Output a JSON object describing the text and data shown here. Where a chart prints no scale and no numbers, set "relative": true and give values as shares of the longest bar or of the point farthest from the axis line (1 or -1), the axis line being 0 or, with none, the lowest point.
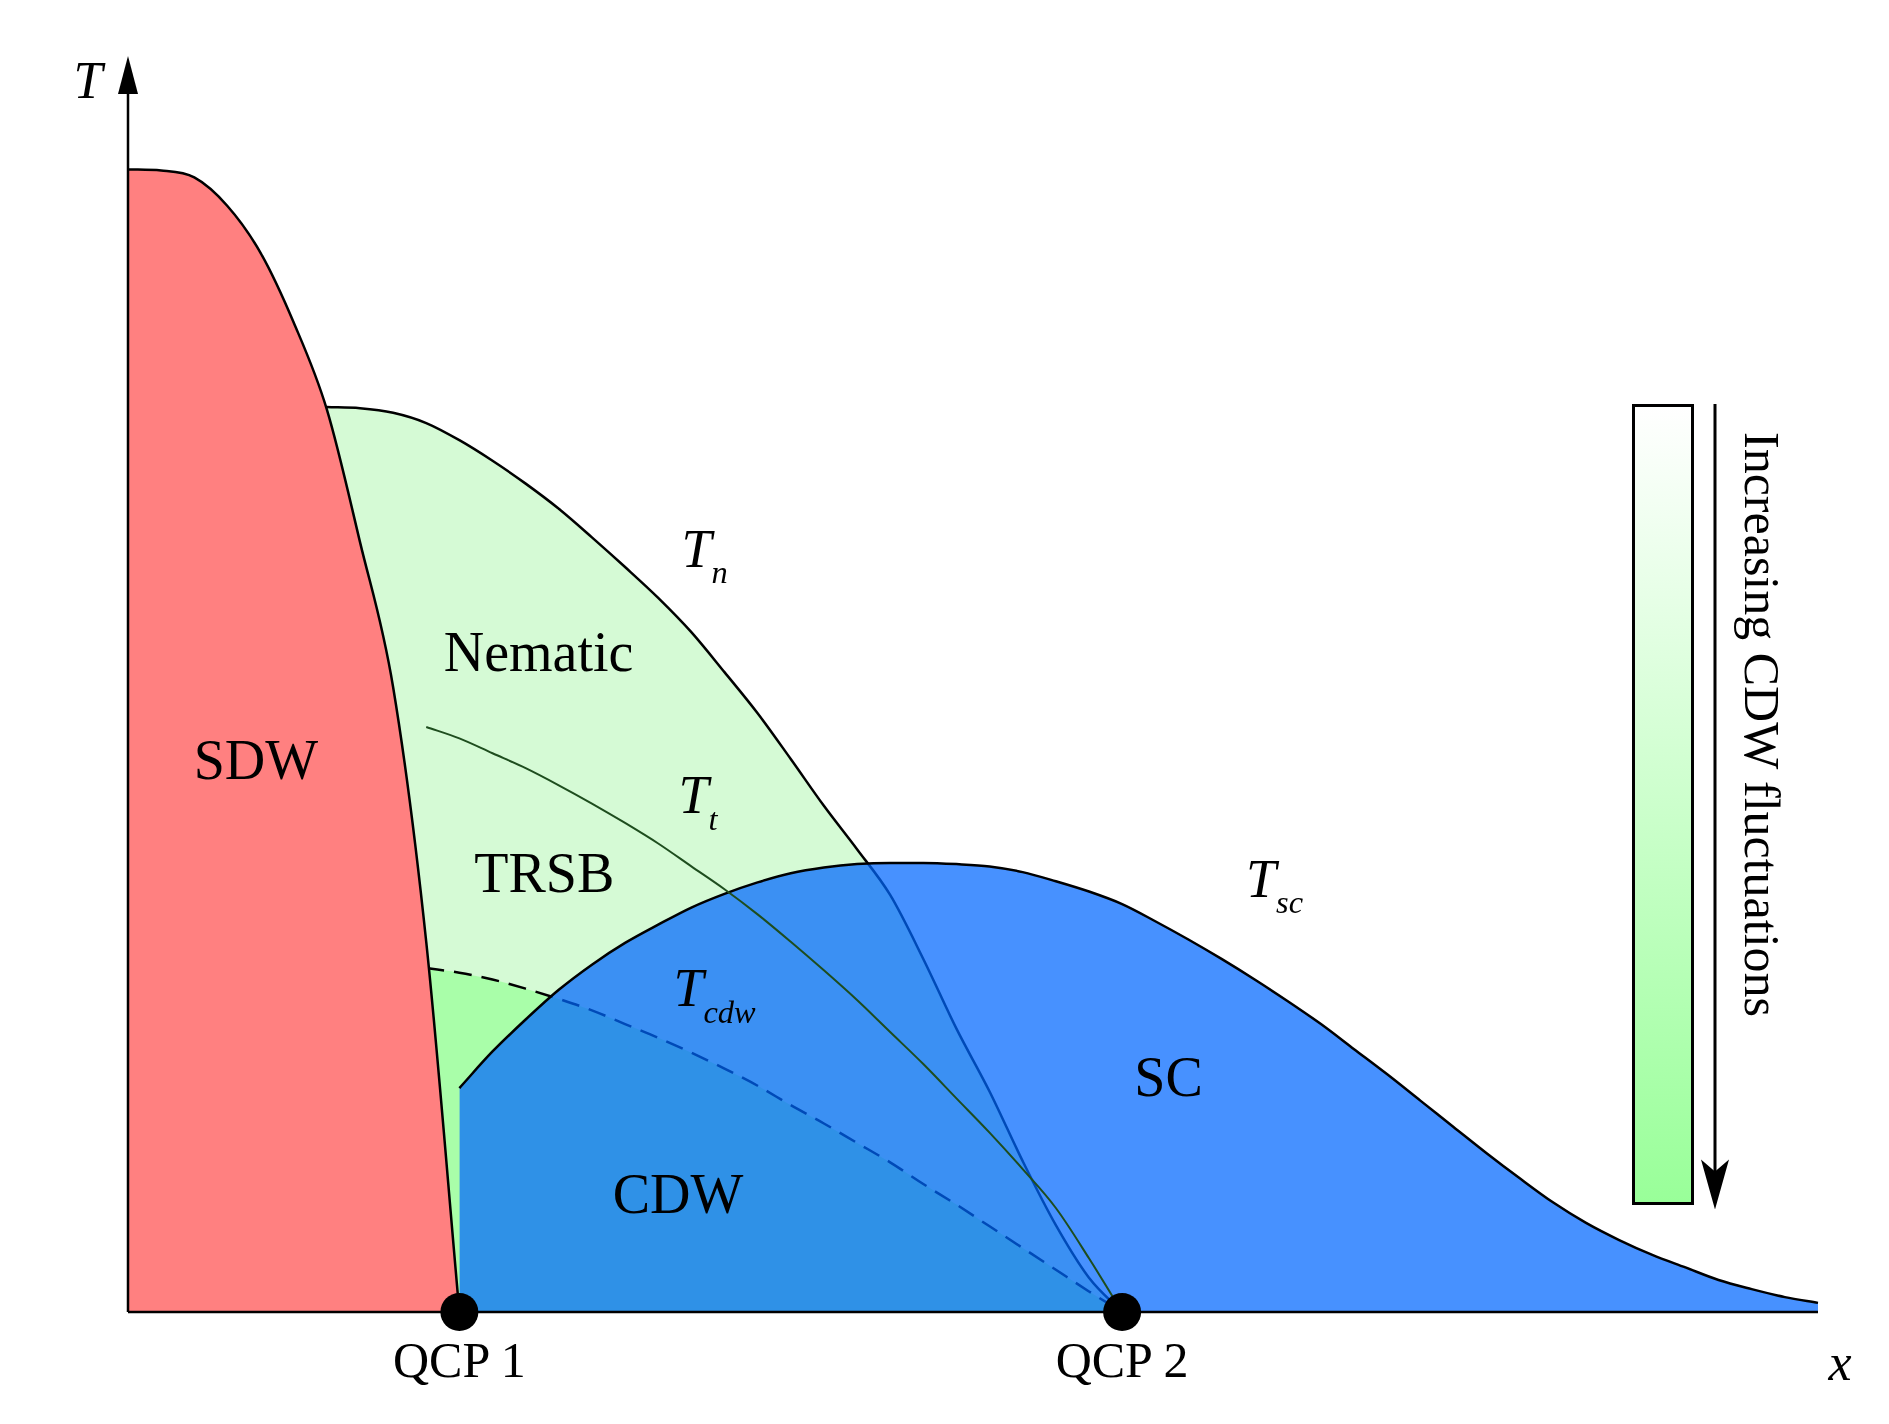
{
  "chart_data": {
    "type": "area",
    "relative": true,
    "xlabel": "x",
    "ylabel": "T",
    "legend": false,
    "grid": false,
    "categories": [
      null,
      null,
      null,
      null,
      null,
      null,
      null,
      null,
      null,
      null,
      "QCP 1",
      null,
      null,
      null,
      null,
      null,
      null,
      null,
      null,
      null,
      null,
      null,
      null,
      null,
      null,
      null,
      null,
      null,
      null,
      null,
      "QCP 2",
      null,
      null,
      null,
      null,
      null,
      null,
      null,
      null,
      null,
      null,
      null,
      null,
      null,
      null,
      null,
      null,
      null,
      null,
      null,
      null,
      null
    ],
    "series": [
      {
        "type": "area",
        "color": "#d0fad0",
        "values": [
          null,
          null,
          null,
          null,
          null,
          null,
          0.792,
          0.791,
          0.787,
          0.778,
          0.763,
          0.745,
          0.725,
          0.703,
          0.678,
          0.652,
          0.625,
          0.595,
          0.56,
          0.524,
          0.484,
          0.443,
          0.405,
          0.365,
          0.309,
          0.248,
          0.193,
          0.132,
          0.076,
          0.03,
          0,
          null,
          null,
          null,
          null,
          null,
          null,
          null,
          null,
          null,
          null,
          null,
          null,
          null,
          null,
          null,
          null,
          null,
          null,
          null,
          null,
          null
        ]
      },
      {
        "type": "area",
        "color": "#99ff99",
        "line_style": "dashed",
        "values": [
          null,
          null,
          null,
          null,
          null,
          null,
          null,
          null,
          null,
          0.301,
          0.297,
          0.291,
          0.283,
          0.274,
          0.264,
          0.252,
          0.24,
          0.227,
          0.213,
          0.198,
          0.181,
          0.165,
          0.148,
          0.131,
          0.112,
          0.094,
          0.075,
          0.056,
          0.037,
          0.018,
          0,
          null,
          null,
          null,
          null,
          null,
          null,
          null,
          null,
          null,
          null,
          null,
          null,
          null,
          null,
          null,
          null,
          null,
          null,
          null,
          null,
          null
        ]
      },
      {
        "type": "area",
        "color": "#0066ff",
        "values": [
          null,
          null,
          null,
          null,
          null,
          null,
          null,
          null,
          null,
          null,
          0.196,
          0.228,
          0.256,
          0.282,
          0.304,
          0.323,
          0.339,
          0.354,
          0.366,
          0.376,
          0.384,
          0.389,
          0.392,
          0.393,
          0.393,
          0.392,
          0.39,
          0.385,
          0.377,
          0.368,
          0.357,
          0.342,
          0.326,
          0.309,
          0.291,
          0.272,
          0.252,
          0.23,
          0.208,
          0.185,
          0.162,
          0.139,
          0.117,
          0.096,
          0.078,
          0.063,
          0.05,
          0.039,
          0.028,
          0.02,
          0.013,
          0.008
        ]
      },
      {
        "type": "line",
        "color": "#1e4d1e",
        "values": [
          null,
          null,
          null,
          null,
          null,
          null,
          null,
          null,
          null,
          0.512,
          0.502,
          0.489,
          0.476,
          0.461,
          0.445,
          0.428,
          0.41,
          0.39,
          0.37,
          0.348,
          0.324,
          0.299,
          0.273,
          0.245,
          0.217,
          0.187,
          0.157,
          0.125,
          0.091,
          0.047,
          0,
          null,
          null,
          null,
          null,
          null,
          null,
          null,
          null,
          null,
          null,
          null,
          null,
          null,
          null,
          null,
          null,
          null,
          null,
          null,
          null,
          null
        ]
      },
      {
        "type": "area",
        "color": "#ff8080",
        "values": [
          1,
          0.999,
          0.993,
          0.968,
          0.927,
          0.866,
          0.79,
          0.674,
          0.547,
          0.324,
          0,
          null,
          null,
          null,
          null,
          null,
          null,
          null,
          null,
          null,
          null,
          null,
          null,
          null,
          null,
          null,
          null,
          null,
          null,
          null,
          null,
          null,
          null,
          null,
          null,
          null,
          null,
          null,
          null,
          null,
          null,
          null,
          null,
          null,
          null,
          null,
          null,
          null,
          null,
          null,
          null,
          null
        ]
      },
      {
        "type": "scatter",
        "color": "#000000",
        "marker": "circle",
        "values": [
          null,
          null,
          null,
          null,
          null,
          null,
          null,
          null,
          null,
          null,
          0,
          null,
          null,
          null,
          null,
          null,
          null,
          null,
          null,
          null,
          null,
          null,
          null,
          null,
          null,
          null,
          null,
          null,
          null,
          null,
          0,
          null,
          null,
          null,
          null,
          null,
          null,
          null,
          null,
          null,
          null,
          null,
          null,
          null,
          null,
          null,
          null,
          null,
          null,
          null,
          null,
          null
        ]
      }
    ],
    "annotations": [
      "SDW",
      "Nematic",
      "TRSB",
      "CDW",
      "SC",
      "T$_{n}$",
      "T$_{t}$",
      "T$_{cdw}$",
      "T$_{sc}$",
      "Increasing CDW fluctuations"
    ]
  }
}
